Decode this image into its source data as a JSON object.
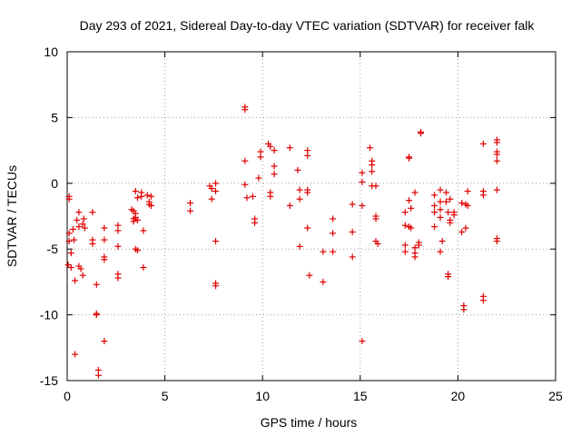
{
  "chart_data": {
    "type": "scatter",
    "title": "Day 293 of 2021, Sidereal Day-to-day VTEC variation (SDTVAR) for receiver falk",
    "xlabel": "GPS time / hours",
    "ylabel": "SDTVAR / TECUs",
    "xlim": [
      0,
      25
    ],
    "ylim": [
      -15,
      10
    ],
    "xticks": [
      0,
      5,
      10,
      15,
      20,
      25
    ],
    "yticks": [
      -15,
      -10,
      -5,
      0,
      5,
      10
    ],
    "xtick_labels": [
      "0",
      "5",
      "10",
      "15",
      "20",
      "25"
    ],
    "ytick_labels": [
      "-15",
      "-10",
      "-5",
      "0",
      "5",
      "10"
    ],
    "grid": true,
    "series": [
      {
        "name": "SDTVAR",
        "marker": "plus",
        "color": "#e00000",
        "points": [
          [
            0.05,
            -6.2
          ],
          [
            0.1,
            -1.0
          ],
          [
            0.1,
            -1.2
          ],
          [
            0.1,
            -3.8
          ],
          [
            0.1,
            -4.4
          ],
          [
            0.2,
            -5.3
          ],
          [
            0.2,
            -6.4
          ],
          [
            0.3,
            -3.5
          ],
          [
            0.35,
            -4.3
          ],
          [
            0.4,
            -13.0
          ],
          [
            0.4,
            -7.4
          ],
          [
            0.5,
            -2.8
          ],
          [
            0.6,
            -3.3
          ],
          [
            0.6,
            -6.3
          ],
          [
            0.6,
            -2.2
          ],
          [
            0.7,
            -6.5
          ],
          [
            0.8,
            -3.1
          ],
          [
            0.8,
            -7.0
          ],
          [
            0.85,
            -2.7
          ],
          [
            0.9,
            -3.4
          ],
          [
            1.3,
            -2.2
          ],
          [
            1.3,
            -4.3
          ],
          [
            1.3,
            -4.6
          ],
          [
            1.5,
            -7.7
          ],
          [
            1.5,
            -9.9
          ],
          [
            1.5,
            -10.0
          ],
          [
            1.6,
            -14.2
          ],
          [
            1.6,
            -14.6
          ],
          [
            1.9,
            -3.4
          ],
          [
            1.9,
            -4.3
          ],
          [
            1.9,
            -12.0
          ],
          [
            1.9,
            -5.6
          ],
          [
            1.9,
            -5.8
          ],
          [
            2.6,
            -3.2
          ],
          [
            2.6,
            -3.6
          ],
          [
            2.6,
            -4.8
          ],
          [
            2.6,
            -6.9
          ],
          [
            2.6,
            -7.2
          ],
          [
            3.3,
            -2.0
          ],
          [
            3.4,
            -2.1
          ],
          [
            3.4,
            -2.7
          ],
          [
            3.4,
            -2.9
          ],
          [
            3.5,
            -0.6
          ],
          [
            3.5,
            -2.3
          ],
          [
            3.5,
            -2.6
          ],
          [
            3.5,
            -5.0
          ],
          [
            3.6,
            -1.1
          ],
          [
            3.6,
            -2.8
          ],
          [
            3.6,
            -5.1
          ],
          [
            3.8,
            -0.7
          ],
          [
            3.8,
            -1.0
          ],
          [
            3.9,
            -3.6
          ],
          [
            3.9,
            -6.4
          ],
          [
            4.1,
            -0.9
          ],
          [
            4.2,
            -1.4
          ],
          [
            4.2,
            -1.6
          ],
          [
            4.3,
            -1.0
          ],
          [
            4.3,
            -1.7
          ],
          [
            6.3,
            -1.5
          ],
          [
            6.3,
            -2.1
          ],
          [
            7.3,
            -0.2
          ],
          [
            7.4,
            -0.4
          ],
          [
            7.4,
            -1.2
          ],
          [
            7.6,
            0.0
          ],
          [
            7.6,
            -0.6
          ],
          [
            7.6,
            -4.4
          ],
          [
            7.6,
            -7.6
          ],
          [
            7.6,
            -7.8
          ],
          [
            9.1,
            5.6
          ],
          [
            9.1,
            5.8
          ],
          [
            9.1,
            1.7
          ],
          [
            9.1,
            -0.1
          ],
          [
            9.2,
            -1.1
          ],
          [
            9.5,
            -1.0
          ],
          [
            9.6,
            -2.7
          ],
          [
            9.6,
            -3.0
          ],
          [
            9.8,
            0.4
          ],
          [
            9.9,
            2.4
          ],
          [
            9.9,
            2.0
          ],
          [
            10.3,
            3.0
          ],
          [
            10.4,
            2.8
          ],
          [
            10.4,
            -0.7
          ],
          [
            10.4,
            -1.0
          ],
          [
            10.6,
            2.5
          ],
          [
            10.6,
            1.3
          ],
          [
            10.6,
            0.7
          ],
          [
            11.4,
            2.7
          ],
          [
            11.4,
            -1.7
          ],
          [
            11.8,
            1.0
          ],
          [
            11.9,
            -0.5
          ],
          [
            11.9,
            -1.2
          ],
          [
            11.9,
            -4.8
          ],
          [
            12.3,
            2.5
          ],
          [
            12.3,
            2.1
          ],
          [
            12.3,
            -0.5
          ],
          [
            12.3,
            -0.7
          ],
          [
            12.3,
            -3.4
          ],
          [
            12.4,
            -7.0
          ],
          [
            13.1,
            -5.2
          ],
          [
            13.1,
            -7.5
          ],
          [
            13.6,
            -2.7
          ],
          [
            13.6,
            -3.8
          ],
          [
            13.6,
            -5.2
          ],
          [
            14.6,
            -1.6
          ],
          [
            14.6,
            -3.7
          ],
          [
            14.6,
            -5.6
          ],
          [
            15.1,
            0.8
          ],
          [
            15.1,
            0.1
          ],
          [
            15.1,
            -1.7
          ],
          [
            15.1,
            -12.0
          ],
          [
            15.5,
            2.7
          ],
          [
            15.6,
            1.7
          ],
          [
            15.6,
            1.4
          ],
          [
            15.6,
            0.9
          ],
          [
            15.6,
            -0.2
          ],
          [
            15.8,
            -0.2
          ],
          [
            15.8,
            -2.5
          ],
          [
            15.8,
            -2.7
          ],
          [
            15.8,
            -4.4
          ],
          [
            15.9,
            -4.6
          ],
          [
            17.3,
            -2.2
          ],
          [
            17.3,
            -3.2
          ],
          [
            17.3,
            -4.7
          ],
          [
            17.3,
            -5.2
          ],
          [
            17.5,
            2.0
          ],
          [
            17.5,
            1.9
          ],
          [
            17.5,
            -1.3
          ],
          [
            17.5,
            -3.3
          ],
          [
            17.6,
            -1.9
          ],
          [
            17.6,
            -3.4
          ],
          [
            17.8,
            -0.7
          ],
          [
            17.8,
            -4.9
          ],
          [
            17.8,
            -5.3
          ],
          [
            17.8,
            -5.6
          ],
          [
            18.0,
            -4.5
          ],
          [
            18.0,
            -4.7
          ],
          [
            18.1,
            3.9
          ],
          [
            18.1,
            3.8
          ],
          [
            18.8,
            -0.9
          ],
          [
            18.8,
            -1.7
          ],
          [
            18.8,
            -2.2
          ],
          [
            18.8,
            -3.3
          ],
          [
            19.1,
            -0.5
          ],
          [
            19.1,
            -1.4
          ],
          [
            19.1,
            -2.0
          ],
          [
            19.1,
            -2.6
          ],
          [
            19.1,
            -5.2
          ],
          [
            19.2,
            -4.4
          ],
          [
            19.4,
            -0.7
          ],
          [
            19.4,
            -1.4
          ],
          [
            19.5,
            -2.2
          ],
          [
            19.5,
            -6.9
          ],
          [
            19.5,
            -7.1
          ],
          [
            19.6,
            -1.2
          ],
          [
            19.6,
            -2.8
          ],
          [
            19.6,
            -3.0
          ],
          [
            19.8,
            -2.2
          ],
          [
            19.8,
            -2.4
          ],
          [
            20.2,
            -1.5
          ],
          [
            20.2,
            -3.7
          ],
          [
            20.3,
            -9.3
          ],
          [
            20.3,
            -9.6
          ],
          [
            20.4,
            -1.6
          ],
          [
            20.4,
            -3.4
          ],
          [
            20.5,
            -0.6
          ],
          [
            20.5,
            -1.7
          ],
          [
            21.3,
            3.0
          ],
          [
            21.3,
            -0.6
          ],
          [
            21.3,
            -0.9
          ],
          [
            21.3,
            -8.6
          ],
          [
            21.3,
            -8.9
          ],
          [
            22.0,
            3.1
          ],
          [
            22.0,
            3.3
          ],
          [
            22.0,
            2.2
          ],
          [
            22.0,
            2.4
          ],
          [
            22.0,
            1.7
          ],
          [
            22.0,
            -0.5
          ],
          [
            22.0,
            -4.2
          ],
          [
            22.0,
            -4.4
          ]
        ]
      }
    ]
  }
}
